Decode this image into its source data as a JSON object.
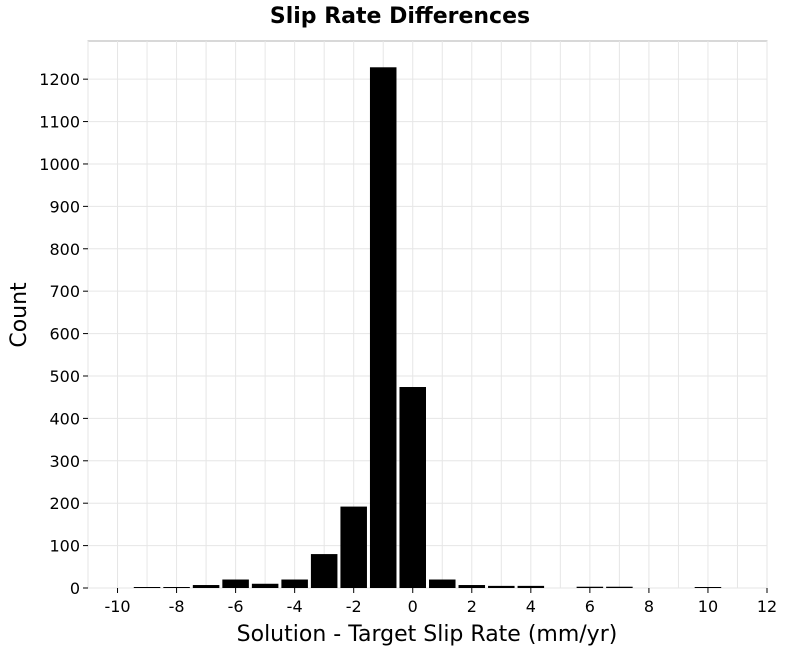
{
  "chart_data": {
    "type": "bar",
    "title": "Slip Rate Differences",
    "xlabel": "Solution - Target Slip Rate (mm/yr)",
    "ylabel": "Count",
    "xlim": [
      -11,
      12
    ],
    "ylim": [
      0,
      1290
    ],
    "bin_width": 1,
    "x_ticks": [
      -10,
      -8,
      -6,
      -4,
      -2,
      0,
      2,
      4,
      6,
      8,
      10,
      12
    ],
    "x_tick_labels": [
      "-10",
      "-8",
      "-6",
      "-4",
      "-2",
      "0",
      "2",
      "4",
      "6",
      "8",
      "10",
      "12"
    ],
    "y_ticks": [
      0,
      100,
      200,
      300,
      400,
      500,
      600,
      700,
      800,
      900,
      1000,
      1100,
      1200
    ],
    "y_tick_labels": [
      "0",
      "100",
      "200",
      "300",
      "400",
      "500",
      "600",
      "700",
      "800",
      "900",
      "1000",
      "1100",
      "1200"
    ],
    "grid": true,
    "bins": [
      {
        "center": -10,
        "value": 0
      },
      {
        "center": -9,
        "value": 1
      },
      {
        "center": -8,
        "value": 1
      },
      {
        "center": -7,
        "value": 7
      },
      {
        "center": -6,
        "value": 20
      },
      {
        "center": -5,
        "value": 10
      },
      {
        "center": -4,
        "value": 20
      },
      {
        "center": -3,
        "value": 80
      },
      {
        "center": -2,
        "value": 192
      },
      {
        "center": -1,
        "value": 1228
      },
      {
        "center": 0,
        "value": 474
      },
      {
        "center": 1,
        "value": 20
      },
      {
        "center": 2,
        "value": 7
      },
      {
        "center": 3,
        "value": 5
      },
      {
        "center": 4,
        "value": 5
      },
      {
        "center": 5,
        "value": 0
      },
      {
        "center": 6,
        "value": 3
      },
      {
        "center": 7,
        "value": 3
      },
      {
        "center": 8,
        "value": 0
      },
      {
        "center": 9,
        "value": 0
      },
      {
        "center": 10,
        "value": 1
      },
      {
        "center": 11,
        "value": 0
      }
    ]
  }
}
